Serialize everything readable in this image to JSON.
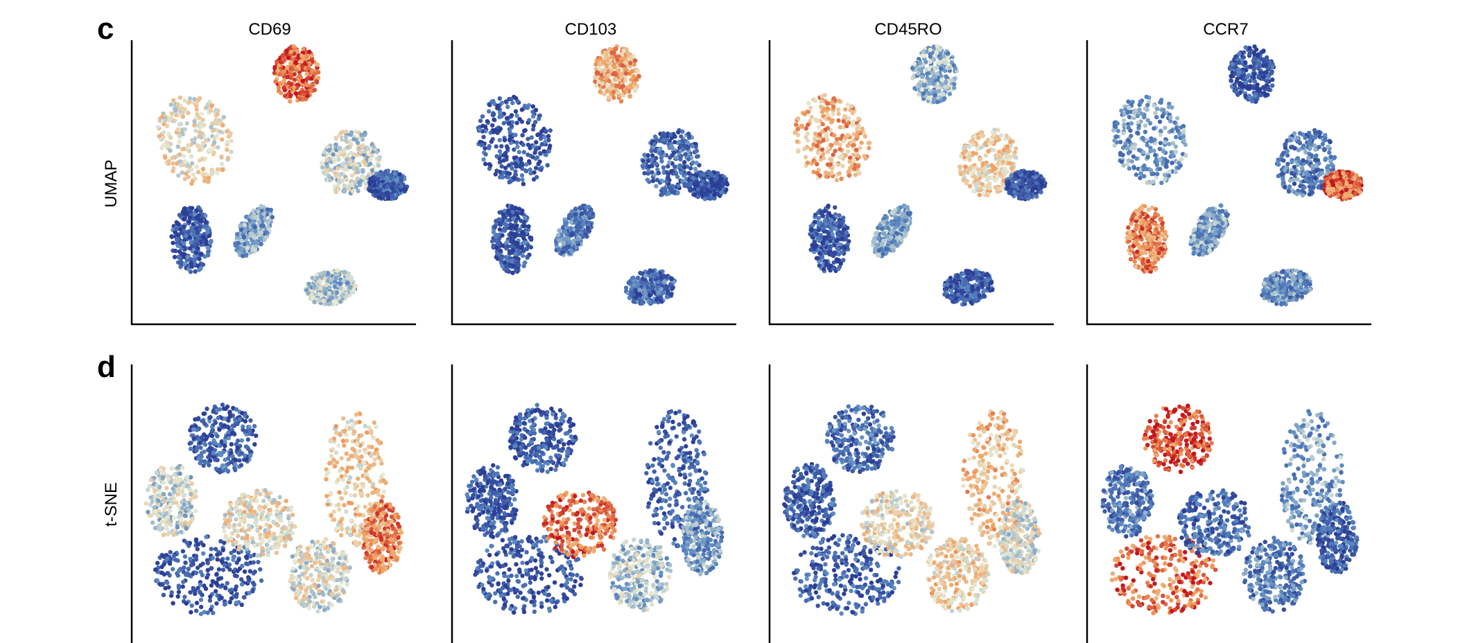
{
  "figure": {
    "columns": [
      "CD69",
      "CD103",
      "CD45RO",
      "CCR7"
    ],
    "colormap": {
      "low": "#2c3f97",
      "mid_low": "#5b8ac2",
      "mid": "#e6ebd6",
      "mid_high": "#f1a05f",
      "high": "#c4151c"
    },
    "axis_color": "#000000"
  },
  "chart_data": [
    {
      "panel": "c",
      "type": "scatter",
      "ylabel": "UMAP",
      "xlabel": "",
      "grid": false,
      "subplots": [
        {
          "title": "CD69",
          "clusters": [
            {
              "name": "left-arm",
              "expression": 0.55
            },
            {
              "name": "left-lower",
              "expression": 0.1
            },
            {
              "name": "top-center",
              "expression": 0.85
            },
            {
              "name": "right-arm",
              "expression": 0.45
            },
            {
              "name": "right-blob",
              "expression": 0.1
            },
            {
              "name": "center-small",
              "expression": 0.3
            },
            {
              "name": "bottom-right",
              "expression": 0.4
            }
          ]
        },
        {
          "title": "CD103",
          "clusters": [
            {
              "name": "left-arm",
              "expression": 0.08
            },
            {
              "name": "left-lower",
              "expression": 0.1
            },
            {
              "name": "top-center",
              "expression": 0.7
            },
            {
              "name": "right-arm",
              "expression": 0.15
            },
            {
              "name": "right-blob",
              "expression": 0.05
            },
            {
              "name": "center-small",
              "expression": 0.2
            },
            {
              "name": "bottom-right",
              "expression": 0.15
            }
          ]
        },
        {
          "title": "CD45RO",
          "clusters": [
            {
              "name": "left-arm",
              "expression": 0.7
            },
            {
              "name": "left-lower",
              "expression": 0.1
            },
            {
              "name": "top-center",
              "expression": 0.35
            },
            {
              "name": "right-arm",
              "expression": 0.6
            },
            {
              "name": "right-blob",
              "expression": 0.08
            },
            {
              "name": "center-small",
              "expression": 0.3
            },
            {
              "name": "bottom-right",
              "expression": 0.08
            }
          ]
        },
        {
          "title": "CCR7",
          "clusters": [
            {
              "name": "left-arm",
              "expression": 0.3
            },
            {
              "name": "left-lower",
              "expression": 0.8
            },
            {
              "name": "top-center",
              "expression": 0.08
            },
            {
              "name": "right-arm",
              "expression": 0.2
            },
            {
              "name": "right-blob",
              "expression": 0.85
            },
            {
              "name": "center-small",
              "expression": 0.3
            },
            {
              "name": "bottom-right",
              "expression": 0.25
            }
          ]
        }
      ]
    },
    {
      "panel": "d",
      "type": "scatter",
      "ylabel": "t-SNE",
      "xlabel": "",
      "grid": false,
      "subplots": [
        {
          "title": "CD69",
          "clusters": [
            {
              "name": "bottom-left",
              "expression": 0.08
            },
            {
              "name": "upper-left",
              "expression": 0.1
            },
            {
              "name": "center",
              "expression": 0.55
            },
            {
              "name": "right-tall",
              "expression": 0.6
            },
            {
              "name": "far-right",
              "expression": 0.8
            },
            {
              "name": "left",
              "expression": 0.45
            },
            {
              "name": "lower-right",
              "expression": 0.5
            }
          ]
        },
        {
          "title": "CD103",
          "clusters": [
            {
              "name": "bottom-left",
              "expression": 0.08
            },
            {
              "name": "upper-left",
              "expression": 0.08
            },
            {
              "name": "center",
              "expression": 0.85
            },
            {
              "name": "right-tall",
              "expression": 0.1
            },
            {
              "name": "far-right",
              "expression": 0.3
            },
            {
              "name": "left",
              "expression": 0.08
            },
            {
              "name": "lower-right",
              "expression": 0.4
            }
          ]
        },
        {
          "title": "CD45RO",
          "clusters": [
            {
              "name": "bottom-left",
              "expression": 0.1
            },
            {
              "name": "upper-left",
              "expression": 0.15
            },
            {
              "name": "center",
              "expression": 0.55
            },
            {
              "name": "right-tall",
              "expression": 0.65
            },
            {
              "name": "far-right",
              "expression": 0.5
            },
            {
              "name": "left",
              "expression": 0.1
            },
            {
              "name": "lower-right",
              "expression": 0.6
            }
          ]
        },
        {
          "title": "CCR7",
          "clusters": [
            {
              "name": "bottom-left",
              "expression": 0.85
            },
            {
              "name": "upper-left",
              "expression": 0.9
            },
            {
              "name": "center",
              "expression": 0.15
            },
            {
              "name": "right-tall",
              "expression": 0.3
            },
            {
              "name": "far-right",
              "expression": 0.1
            },
            {
              "name": "left",
              "expression": 0.2
            },
            {
              "name": "lower-right",
              "expression": 0.2
            }
          ]
        }
      ]
    }
  ]
}
